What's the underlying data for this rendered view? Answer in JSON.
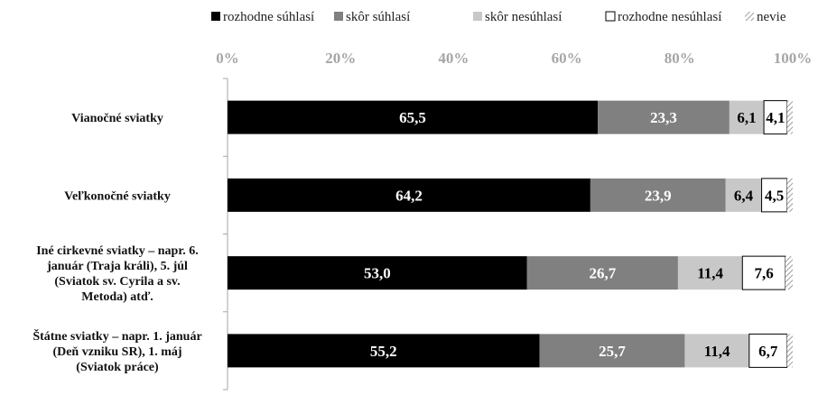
{
  "chart_data": {
    "type": "bar",
    "orientation": "horizontal",
    "stacked": true,
    "percent": true,
    "categories": [
      [
        "Vianočné sviatky"
      ],
      [
        "Veľkonočné sviatky"
      ],
      [
        "Iné cirkevné sviatky – napr. 6.",
        "január (Traja králi), 5. júl",
        "(Sviatok sv. Cyrila a sv.",
        "Metoda) atď."
      ],
      [
        "Štátne sviatky – napr. 1. január",
        "(Deň vzniku SR), 1. máj",
        "(Sviatok práce)"
      ]
    ],
    "series": [
      {
        "name": "rozhodne súhlasí",
        "color": "#000000",
        "label_color": "#ffffff",
        "values": [
          65.5,
          64.2,
          53.0,
          55.2
        ],
        "labels": [
          "65,5",
          "64,2",
          "53,0",
          "55,2"
        ]
      },
      {
        "name": "skôr súhlasí",
        "color": "#808080",
        "label_color": "#ffffff",
        "values": [
          23.3,
          23.9,
          26.7,
          25.7
        ],
        "labels": [
          "23,3",
          "23,9",
          "26,7",
          "25,7"
        ]
      },
      {
        "name": "skôr nesúhlasí",
        "color": "#c8c8c8",
        "label_color": "#000000",
        "values": [
          6.1,
          6.4,
          11.4,
          11.4
        ],
        "labels": [
          "6,1",
          "6,4",
          "11,4",
          "11,4"
        ]
      },
      {
        "name": "rozhodne nesúhlasí",
        "color": "#ffffff",
        "label_color": "#000000",
        "values": [
          4.1,
          4.5,
          7.6,
          6.7
        ],
        "labels": [
          "4,1",
          "4,5",
          "7,6",
          "6,7"
        ]
      },
      {
        "name": "nevie",
        "color": "hatch",
        "label_color": "#000000",
        "values": [
          1.0,
          1.0,
          1.3,
          1.0
        ],
        "labels": [
          "",
          "",
          "",
          ""
        ]
      }
    ],
    "xlim": [
      0,
      100
    ],
    "xticks": [
      "0%",
      "20%",
      "40%",
      "60%",
      "80%",
      "100%"
    ],
    "legend_position": "top",
    "grid": false
  }
}
